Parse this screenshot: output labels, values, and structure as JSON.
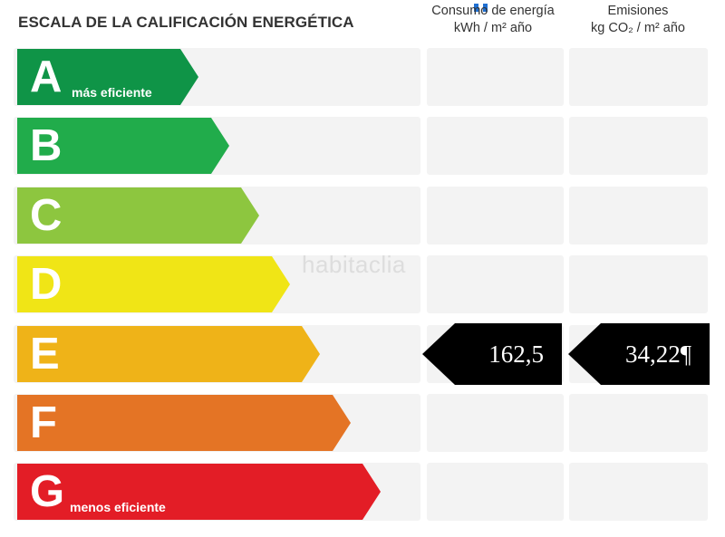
{
  "title": "ESCALA DE LA CALIFICACIÓN ENERGÉTICA",
  "columns": {
    "energy": {
      "line1": "Consumo de energía",
      "line2": "kWh / m² año"
    },
    "emissions": {
      "line1": "Emisiones",
      "line2": "kg CO₂ / m² año"
    }
  },
  "ratings": [
    {
      "letter": "A",
      "note": "más eficiente",
      "color": "#0f9447"
    },
    {
      "letter": "B",
      "note": "",
      "color": "#21ac4b"
    },
    {
      "letter": "C",
      "note": "",
      "color": "#8dc63f"
    },
    {
      "letter": "D",
      "note": "",
      "color": "#f0e516"
    },
    {
      "letter": "E",
      "note": "",
      "color": "#efb318"
    },
    {
      "letter": "F",
      "note": "",
      "color": "#e47425"
    },
    {
      "letter": "G",
      "note": "menos eficiente",
      "color": "#e31d26"
    }
  ],
  "current_rating": "E",
  "values": {
    "energy": "162,5",
    "emissions": "34,22¶"
  },
  "watermark": "habitaclia"
}
